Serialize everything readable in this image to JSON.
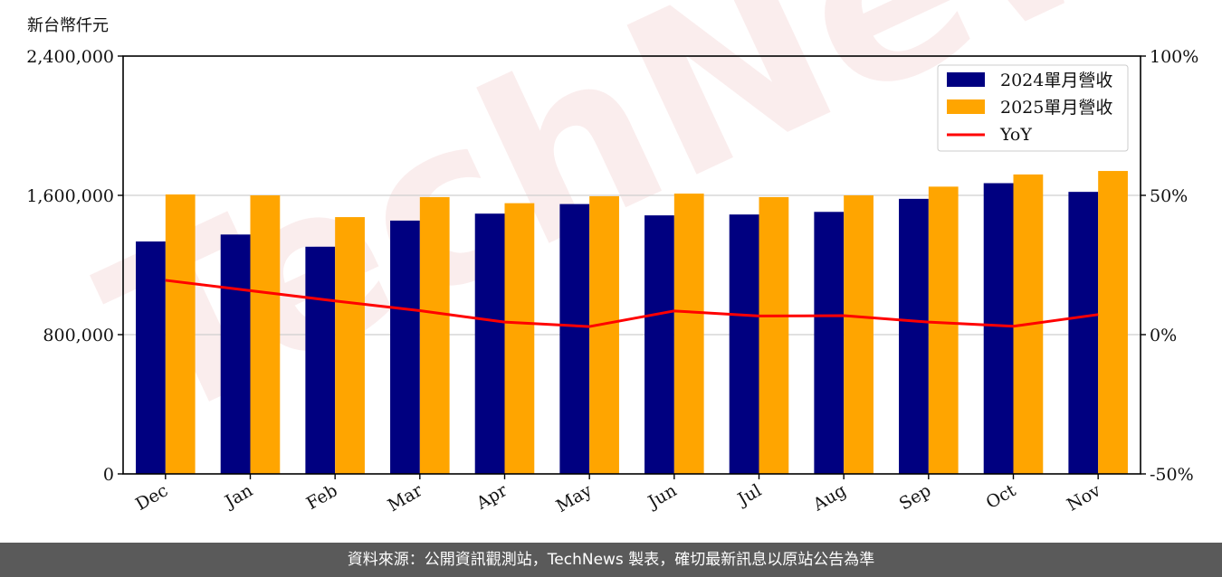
{
  "chart_data": {
    "type": "bar",
    "ylabel": "新台幣仟元",
    "categories": [
      "Dec",
      "Jan",
      "Feb",
      "Mar",
      "Apr",
      "May",
      "Jun",
      "Jul",
      "Aug",
      "Sep",
      "Oct",
      "Nov"
    ],
    "series": [
      {
        "name": "2024單月營收",
        "type": "bar",
        "axis": "left",
        "color": "#000080",
        "values": [
          1335000,
          1375000,
          1305000,
          1455000,
          1495000,
          1550000,
          1485000,
          1490000,
          1505000,
          1580000,
          1670000,
          1620000
        ]
      },
      {
        "name": "2025單月營收",
        "type": "bar",
        "axis": "left",
        "color": "#FFA500",
        "values": [
          1605000,
          1600000,
          1475000,
          1590000,
          1555000,
          1595000,
          1610000,
          1590000,
          1600000,
          1650000,
          1720000,
          1740000
        ]
      },
      {
        "name": "YoY",
        "type": "line",
        "axis": "right",
        "color": "#FF0000",
        "values": [
          19.5,
          15.8,
          12.1,
          8.6,
          4.5,
          2.9,
          8.5,
          6.7,
          6.8,
          4.5,
          3.0,
          7.2
        ]
      }
    ],
    "y_left": {
      "range": [
        0,
        2400000
      ],
      "ticks": [
        "0",
        "800,000",
        "1,600,000",
        "2,400,000"
      ]
    },
    "y_right": {
      "range": [
        -50,
        100
      ],
      "ticks": [
        "-50%",
        "0%",
        "50%",
        "100%"
      ]
    },
    "grid": "horizontal",
    "legend_position": "top-right"
  },
  "watermark": "TechNews",
  "footer": {
    "text": "資料來源：公開資訊觀測站，TechNews 製表，確切最新訊息以原站公告為準"
  }
}
